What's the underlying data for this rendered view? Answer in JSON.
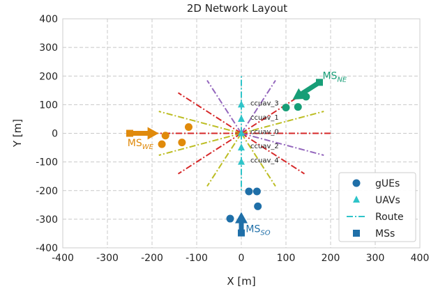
{
  "chart_data": {
    "type": "scatter",
    "title": "2D Network Layout",
    "xlabel": "X [m]",
    "ylabel": "Y [m]",
    "xlim": [
      -400,
      400
    ],
    "ylim": [
      -400,
      400
    ],
    "xticks": [
      -400,
      -300,
      -200,
      -100,
      0,
      100,
      200,
      300,
      400
    ],
    "yticks": [
      -400,
      -300,
      -200,
      -100,
      0,
      100,
      200,
      300,
      400
    ],
    "grid": true,
    "legend_position": "bottom-right",
    "legend": [
      {
        "label": "gUEs",
        "marker": "circle",
        "color": "#1f6fa8"
      },
      {
        "label": "UAVs",
        "marker": "triangle",
        "color": "#2ec4c9"
      },
      {
        "label": "Route",
        "marker": "dashdot-line",
        "color": "#2ec4c9"
      },
      {
        "label": "MSs",
        "marker": "square",
        "color": "#1f6fa8"
      }
    ],
    "routes": [
      {
        "angle": 0,
        "length": 200,
        "color": "#d62728"
      },
      {
        "angle": 22.5,
        "length": 200,
        "color": "#bcbd22"
      },
      {
        "angle": 45,
        "length": 200,
        "color": "#d62728"
      },
      {
        "angle": 67.5,
        "length": 200,
        "color": "#9467bd"
      },
      {
        "angle": 90,
        "length": 200,
        "color": "#2ec4c9"
      },
      {
        "angle": 112.5,
        "length": 200,
        "color": "#9467bd"
      },
      {
        "angle": 135,
        "length": 200,
        "color": "#d62728"
      },
      {
        "angle": 157.5,
        "length": 200,
        "color": "#bcbd22"
      },
      {
        "angle": 180,
        "length": 200,
        "color": "#d62728"
      },
      {
        "angle": 202.5,
        "length": 200,
        "color": "#bcbd22"
      },
      {
        "angle": 225,
        "length": 200,
        "color": "#d62728"
      },
      {
        "angle": 247.5,
        "length": 200,
        "color": "#bcbd22"
      },
      {
        "angle": 270,
        "length": 200,
        "color": "#2ec4c9"
      },
      {
        "angle": 292.5,
        "length": 200,
        "color": "#bcbd22"
      },
      {
        "angle": 315,
        "length": 200,
        "color": "#d62728"
      },
      {
        "angle": 337.5,
        "length": 200,
        "color": "#9467bd"
      }
    ],
    "uavs": [
      {
        "label": "ccuav_3",
        "x": 0,
        "y": 100
      },
      {
        "label": "ccuav_1",
        "x": 0,
        "y": 50
      },
      {
        "label": "ccuav_0",
        "x": 0,
        "y": 0
      },
      {
        "label": "ccuav_2",
        "x": 0,
        "y": -50
      },
      {
        "label": "ccuav_4",
        "x": 0,
        "y": -100
      }
    ],
    "mobile_stations": [
      {
        "name": "MS_NE",
        "label_main": "MS",
        "label_sub": "NE",
        "color": "#179e77",
        "x": 175,
        "y": 178,
        "arrow_to": [
          115,
          118
        ],
        "label_at": [
          182,
          190
        ],
        "gues": [
          [
            145,
            128
          ],
          [
            127,
            92
          ],
          [
            100,
            90
          ]
        ]
      },
      {
        "name": "MS_WE",
        "label_main": "MS",
        "label_sub": "WE",
        "color": "#e08a0b",
        "x": -250,
        "y": 0,
        "arrow_to": [
          -185,
          0
        ],
        "label_at": [
          -255,
          -45
        ],
        "gues": [
          [
            -118,
            22
          ],
          [
            -170,
            -8
          ],
          [
            -178,
            -38
          ],
          [
            -133,
            -32
          ]
        ]
      },
      {
        "name": "MS_SO",
        "label_main": "MS",
        "label_sub": "SO",
        "color": "#1f6fa8",
        "x": 0,
        "y": -348,
        "arrow_to": [
          0,
          -275
        ],
        "label_at": [
          10,
          -345
        ],
        "gues": [
          [
            17,
            -203
          ],
          [
            35,
            -203
          ],
          [
            37,
            -255
          ],
          [
            -25,
            -298
          ]
        ]
      }
    ]
  }
}
